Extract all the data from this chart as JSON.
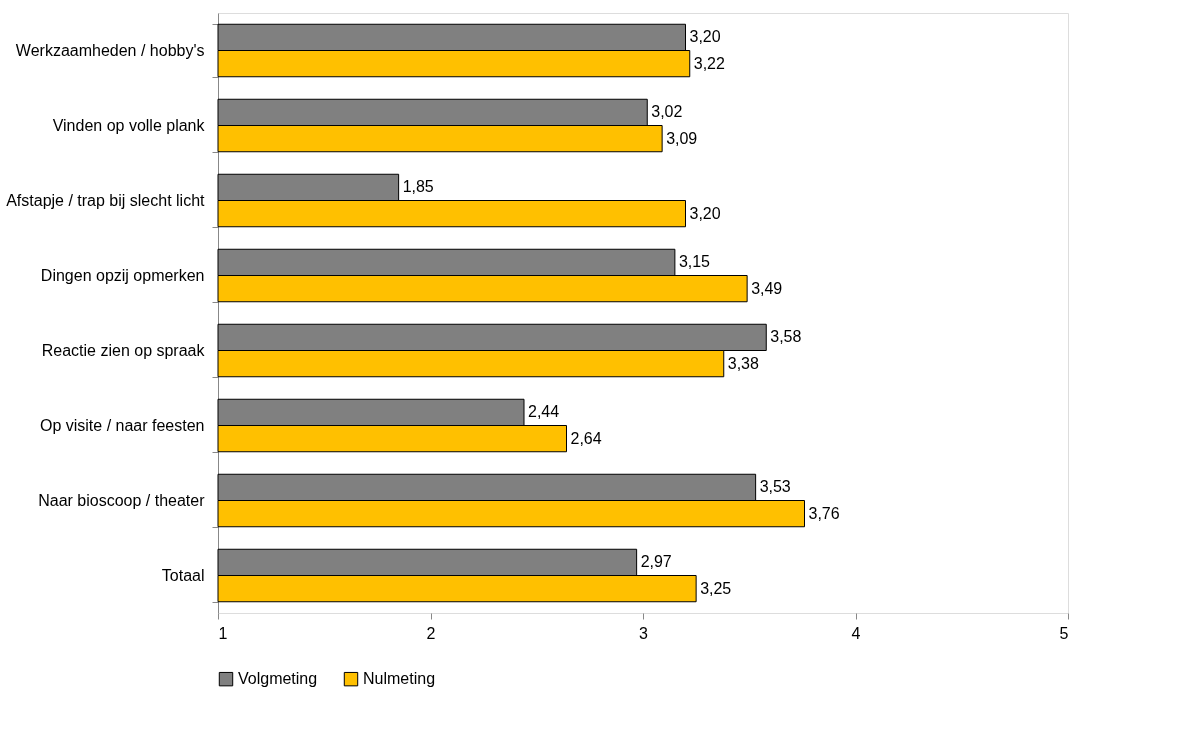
{
  "chart_data": {
    "type": "bar",
    "orientation": "horizontal",
    "categories": [
      "Werkzaamheden / hobby's",
      "Vinden op volle plank",
      "Afstapje / trap bij slecht licht",
      "Dingen opzij opmerken",
      "Reactie zien op spraak",
      "Op visite / naar feesten",
      "Naar bioscoop / theater",
      "Totaal"
    ],
    "series": [
      {
        "name": "Volgmeting",
        "color": "#808080",
        "values": [
          3.2,
          3.02,
          1.85,
          3.15,
          3.58,
          2.44,
          3.53,
          2.97
        ],
        "value_labels": [
          "3,20",
          "3,02",
          "1,85",
          "3,15",
          "3,58",
          "2,44",
          "3,53",
          "2,97"
        ]
      },
      {
        "name": "Nulmeting",
        "color": "#ffc000",
        "values": [
          3.22,
          3.09,
          3.2,
          3.49,
          3.38,
          2.64,
          3.76,
          3.25
        ],
        "value_labels": [
          "3,22",
          "3,09",
          "3,20",
          "3,49",
          "3,38",
          "2,64",
          "3,76",
          "3,25"
        ]
      }
    ],
    "xlim": [
      1,
      5
    ],
    "xticks": [
      1,
      2,
      3,
      4,
      5
    ],
    "grid": false,
    "legend": "bottom"
  }
}
